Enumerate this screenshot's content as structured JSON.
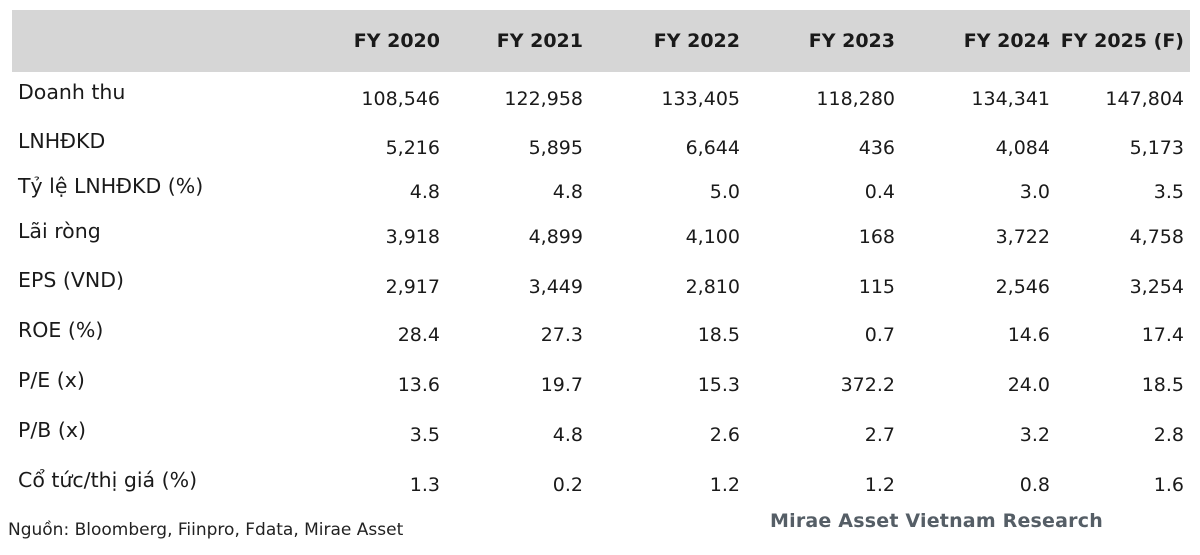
{
  "table": {
    "columns": [
      "FY 2020",
      "FY 2021",
      "FY 2022",
      "FY 2023",
      "FY 2024",
      "FY 2025 (F)"
    ],
    "rows": [
      {
        "label": "Doanh thu",
        "values": [
          "108,546",
          "122,958",
          "133,405",
          "118,280",
          "134,341",
          "147,804"
        ]
      },
      {
        "label": "LNHĐKD",
        "values": [
          "5,216",
          "5,895",
          "6,644",
          "436",
          "4,084",
          "5,173"
        ]
      },
      {
        "label": "Tỷ lệ LNHĐKD (%)",
        "values": [
          "4.8",
          "4.8",
          "5.0",
          "0.4",
          "3.0",
          "3.5"
        ]
      },
      {
        "label": "Lãi ròng",
        "values": [
          "3,918",
          "4,899",
          "4,100",
          "168",
          "3,722",
          "4,758"
        ]
      },
      {
        "label": "EPS (VND)",
        "values": [
          "2,917",
          "3,449",
          "2,810",
          "115",
          "2,546",
          "3,254"
        ]
      },
      {
        "label": "ROE (%)",
        "values": [
          "28.4",
          "27.3",
          "18.5",
          "0.7",
          "14.6",
          "17.4"
        ]
      },
      {
        "label": "P/E (x)",
        "values": [
          "13.6",
          "19.7",
          "15.3",
          "372.2",
          "24.0",
          "18.5"
        ]
      },
      {
        "label": "P/B (x)",
        "values": [
          "3.5",
          "4.8",
          "2.6",
          "2.7",
          "3.2",
          "2.8"
        ]
      },
      {
        "label": "Cổ tức/thị giá (%)",
        "values": [
          "1.3",
          "0.2",
          "1.2",
          "1.2",
          "0.8",
          "1.6"
        ]
      }
    ]
  },
  "footer": {
    "source": "Nguồn: Bloomberg, Fiinpro, Fdata, Mirae Asset",
    "brand": "Mirae Asset Vietnam Research"
  }
}
